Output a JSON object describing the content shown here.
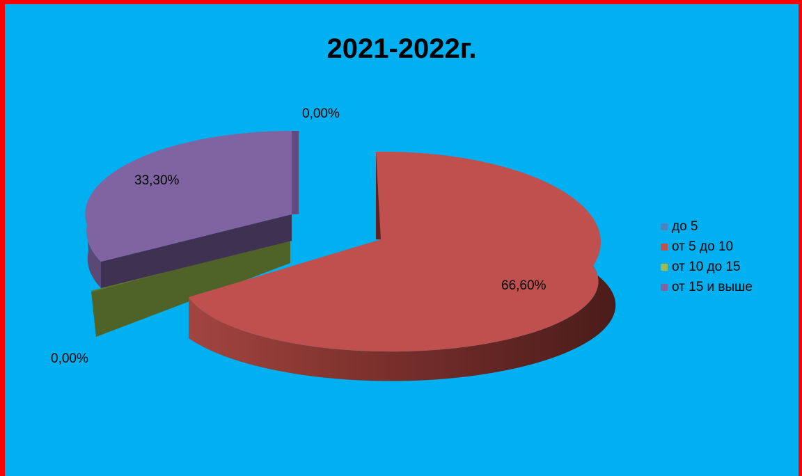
{
  "chart_data": {
    "type": "pie",
    "title": "2021-2022г.",
    "categories": [
      "до 5",
      "от 5 до 10",
      "от 10 до 15",
      "от 15 и выше"
    ],
    "values": [
      0.0,
      66.6,
      0.0,
      33.3
    ],
    "data_labels": [
      "0,00%",
      "66,60%",
      "0,00%",
      "33,30%"
    ],
    "colors": [
      "#4F81BD",
      "#C0504D",
      "#9BBB59",
      "#8064A2"
    ],
    "legend_position": "right",
    "style": "3d-exploded"
  },
  "colors": {
    "background": "#00B0F0",
    "border": "#FF0000"
  }
}
